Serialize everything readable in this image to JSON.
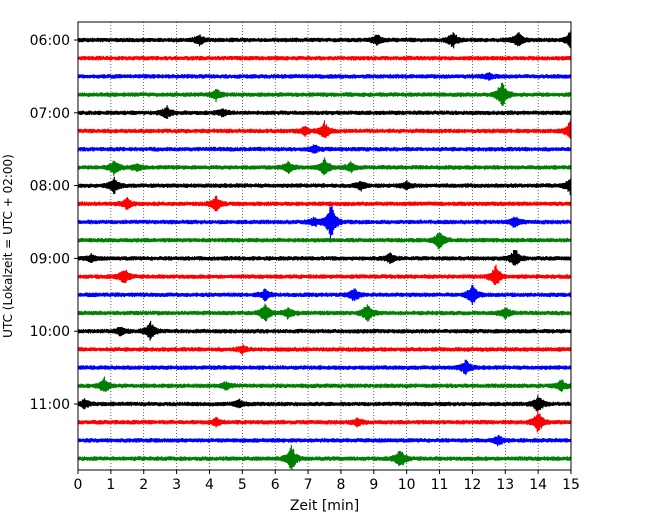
{
  "chart_data": {
    "type": "line",
    "title": "",
    "xlabel": "Zeit  [min]",
    "ylabel": "UTC (Lokalzeit = UTC + 02:00)",
    "xlim": [
      0,
      15
    ],
    "x_ticks": [
      "0",
      "1",
      "2",
      "3",
      "4",
      "5",
      "6",
      "7",
      "8",
      "9",
      "10",
      "11",
      "12",
      "13",
      "14",
      "15"
    ],
    "y_ticks": [
      "06:00",
      "07:00",
      "08:00",
      "09:00",
      "10:00",
      "11:00"
    ],
    "grid": "vertical dotted",
    "trace_interval_min": 15,
    "start_time": "06:00",
    "colors": [
      "#000000",
      "#ff0000",
      "#0000ff",
      "#008000"
    ],
    "series": [
      {
        "start": "06:00",
        "values": [
          0.0,
          0.0,
          0.0,
          0.0,
          0.0,
          0.0,
          0.0,
          0.0,
          0.0,
          0.0,
          0.0,
          0.0,
          0.0,
          0.0,
          0.0,
          0.0,
          0.0,
          0.0,
          0.0,
          0.0,
          0.0,
          0.0,
          0.0,
          0.0,
          0.0,
          0.0,
          0.0,
          0.0,
          0.0,
          0.0,
          0.0,
          0.0
        ]
      },
      {
        "start": "06:15",
        "values": [
          0.0,
          0.0,
          0.0,
          0.0,
          0.0,
          0.0,
          0.0,
          0.0,
          0.0,
          0.0,
          0.0,
          0.0,
          0.0,
          0.0,
          0.0,
          0.0,
          0.0,
          0.0,
          0.0,
          0.0,
          0.0,
          0.0,
          0.0,
          0.0,
          0.0,
          0.0,
          0.0,
          0.0,
          0.0,
          0.0,
          0.0,
          0.0
        ]
      },
      {
        "start": "06:30",
        "values": [
          0.0,
          0.0,
          0.0,
          0.0,
          0.0,
          0.0,
          0.0,
          0.0,
          0.0,
          0.0,
          0.0,
          0.0,
          0.0,
          0.0,
          0.0,
          0.0,
          0.0,
          0.0,
          0.0,
          0.0,
          0.0,
          0.0,
          0.0,
          0.0,
          0.0,
          0.0,
          0.0,
          0.0,
          0.0,
          0.0,
          0.0,
          0.0
        ]
      },
      {
        "start": "06:45",
        "values": [
          0.0,
          0.0,
          0.0,
          0.0,
          0.0,
          0.0,
          0.0,
          0.0,
          0.0,
          0.0,
          0.0,
          0.0,
          0.0,
          0.0,
          0.0,
          0.0,
          0.0,
          0.0,
          0.0,
          0.0,
          0.0,
          0.0,
          0.0,
          0.0,
          0.0,
          0.0,
          0.0,
          0.0,
          0.0,
          0.0,
          0.0,
          0.0
        ]
      },
      {
        "start": "07:00",
        "values": [
          0.0,
          0.0,
          0.0,
          0.0,
          0.0,
          0.0,
          0.0,
          0.0,
          0.0,
          0.0,
          0.0,
          0.0,
          0.0,
          0.0,
          0.0,
          0.0,
          0.0,
          0.0,
          0.0,
          0.0,
          0.0,
          0.0,
          0.0,
          0.0,
          0.0,
          0.0,
          0.0,
          0.0,
          0.0,
          0.0,
          0.0,
          0.0
        ]
      },
      {
        "start": "07:15",
        "values": [
          0.0,
          0.0,
          0.0,
          0.0,
          0.0,
          0.0,
          0.0,
          0.0,
          0.0,
          0.0,
          0.0,
          0.0,
          0.0,
          0.0,
          0.0,
          0.0,
          0.0,
          0.0,
          0.0,
          0.0,
          0.0,
          0.0,
          0.0,
          0.0,
          0.0,
          0.0,
          0.0,
          0.0,
          0.0,
          0.0,
          0.0,
          0.0
        ]
      },
      {
        "start": "07:30",
        "values": [
          0.0,
          0.0,
          0.0,
          0.0,
          0.0,
          0.0,
          0.0,
          0.0,
          0.0,
          0.0,
          0.0,
          0.0,
          0.0,
          0.0,
          0.0,
          0.0,
          0.0,
          0.0,
          0.0,
          0.0,
          0.0,
          0.0,
          0.0,
          0.0,
          0.0,
          0.0,
          0.0,
          0.0,
          0.0,
          0.0,
          0.0,
          0.0
        ]
      },
      {
        "start": "07:45",
        "values": [
          0.0,
          0.0,
          0.0,
          0.0,
          0.0,
          0.0,
          0.0,
          0.0,
          0.0,
          0.0,
          0.0,
          0.0,
          0.0,
          0.0,
          0.0,
          0.0,
          0.0,
          0.0,
          0.0,
          0.0,
          0.0,
          0.0,
          0.0,
          0.0,
          0.0,
          0.0,
          0.0,
          0.0,
          0.0,
          0.0,
          0.0,
          0.0
        ]
      },
      {
        "start": "08:00",
        "values": [
          0.0,
          0.0,
          0.0,
          0.0,
          0.0,
          0.0,
          0.0,
          0.0,
          0.0,
          0.0,
          0.0,
          0.0,
          0.0,
          0.0,
          0.0,
          0.0,
          0.0,
          0.0,
          0.0,
          0.0,
          0.0,
          0.0,
          0.0,
          0.0,
          0.0,
          0.0,
          0.0,
          0.0,
          0.0,
          0.0,
          0.0,
          0.0
        ]
      },
      {
        "start": "08:15",
        "values": [
          0.0,
          0.0,
          0.0,
          0.0,
          0.0,
          0.0,
          0.0,
          0.0,
          0.0,
          0.0,
          0.0,
          0.0,
          0.0,
          0.0,
          0.0,
          0.0,
          0.0,
          0.0,
          0.0,
          0.0,
          0.0,
          0.0,
          0.0,
          0.0,
          0.0,
          0.0,
          0.0,
          0.0,
          0.0,
          0.0,
          0.0,
          0.0
        ]
      },
      {
        "start": "08:30",
        "values": [
          0.0,
          0.0,
          0.0,
          0.0,
          0.0,
          0.0,
          0.0,
          0.0,
          0.0,
          0.0,
          0.0,
          0.0,
          0.0,
          0.0,
          0.0,
          0.0,
          0.0,
          0.0,
          0.0,
          0.0,
          0.0,
          0.0,
          0.0,
          0.0,
          0.0,
          0.0,
          0.0,
          0.0,
          0.0,
          0.0,
          0.0,
          0.0
        ]
      },
      {
        "start": "08:45",
        "values": [
          0.0,
          0.0,
          0.0,
          0.0,
          0.0,
          0.0,
          0.0,
          0.0,
          0.0,
          0.0,
          0.0,
          0.0,
          0.0,
          0.0,
          0.0,
          0.0,
          0.0,
          0.0,
          0.0,
          0.0,
          0.0,
          0.0,
          0.0,
          0.0,
          0.0,
          0.0,
          0.0,
          0.0,
          0.0,
          0.0,
          0.0,
          0.0
        ]
      },
      {
        "start": "09:00",
        "values": [
          0.0,
          0.0,
          0.0,
          0.0,
          0.0,
          0.0,
          0.0,
          0.0,
          0.0,
          0.0,
          0.0,
          0.0,
          0.0,
          0.0,
          0.0,
          0.0,
          0.0,
          0.0,
          0.0,
          0.0,
          0.0,
          0.0,
          0.0,
          0.0,
          0.0,
          0.0,
          0.0,
          0.0,
          0.0,
          0.0,
          0.0,
          0.0
        ]
      },
      {
        "start": "09:15",
        "values": [
          0.0,
          0.0,
          0.0,
          0.0,
          0.0,
          0.0,
          0.0,
          0.0,
          0.0,
          0.0,
          0.0,
          0.0,
          0.0,
          0.0,
          0.0,
          0.0,
          0.0,
          0.0,
          0.0,
          0.0,
          0.0,
          0.0,
          0.0,
          0.0,
          0.0,
          0.0,
          0.0,
          0.0,
          0.0,
          0.0,
          0.0,
          0.0
        ]
      },
      {
        "start": "09:30",
        "values": [
          0.0,
          0.0,
          0.0,
          0.0,
          0.0,
          0.0,
          0.0,
          0.0,
          0.0,
          0.0,
          0.0,
          0.0,
          0.0,
          0.0,
          0.0,
          0.0,
          0.0,
          0.0,
          0.0,
          0.0,
          0.0,
          0.0,
          0.0,
          0.0,
          0.0,
          0.0,
          0.0,
          0.0,
          0.0,
          0.0,
          0.0,
          0.0
        ]
      },
      {
        "start": "09:45",
        "values": [
          0.0,
          0.0,
          0.0,
          0.0,
          0.0,
          0.0,
          0.0,
          0.0,
          0.0,
          0.0,
          0.0,
          0.0,
          0.0,
          0.0,
          0.0,
          0.0,
          0.0,
          0.0,
          0.0,
          0.0,
          0.0,
          0.0,
          0.0,
          0.0,
          0.0,
          0.0,
          0.0,
          0.0,
          0.0,
          0.0,
          0.0,
          0.0
        ]
      },
      {
        "start": "10:00",
        "values": [
          0.0,
          0.0,
          0.0,
          0.0,
          0.0,
          0.0,
          0.0,
          0.0,
          0.0,
          0.0,
          0.0,
          0.0,
          0.0,
          0.0,
          0.0,
          0.0,
          0.0,
          0.0,
          0.0,
          0.0,
          0.0,
          0.0,
          0.0,
          0.0,
          0.0,
          0.0,
          0.0,
          0.0,
          0.0,
          0.0,
          0.0,
          0.0
        ]
      },
      {
        "start": "10:15",
        "values": [
          0.0,
          0.0,
          0.0,
          0.0,
          0.0,
          0.0,
          0.0,
          0.0,
          0.0,
          0.0,
          0.0,
          0.0,
          0.0,
          0.0,
          0.0,
          0.0,
          0.0,
          0.0,
          0.0,
          0.0,
          0.0,
          0.0,
          0.0,
          0.0,
          0.0,
          0.0,
          0.0,
          0.0,
          0.0,
          0.0,
          0.0,
          0.0
        ]
      },
      {
        "start": "10:30",
        "values": [
          0.0,
          0.0,
          0.0,
          0.0,
          0.0,
          0.0,
          0.0,
          0.0,
          0.0,
          0.0,
          0.0,
          0.0,
          0.0,
          0.0,
          0.0,
          0.0,
          0.0,
          0.0,
          0.0,
          0.0,
          0.0,
          0.0,
          0.0,
          0.0,
          0.0,
          0.0,
          0.0,
          0.0,
          0.0,
          0.0,
          0.0,
          0.0
        ]
      },
      {
        "start": "10:45",
        "values": [
          0.0,
          0.0,
          0.0,
          0.0,
          0.0,
          0.0,
          0.0,
          0.0,
          0.0,
          0.0,
          0.0,
          0.0,
          0.0,
          0.0,
          0.0,
          0.0,
          0.0,
          0.0,
          0.0,
          0.0,
          0.0,
          0.0,
          0.0,
          0.0,
          0.0,
          0.0,
          0.0,
          0.0,
          0.0,
          0.0,
          0.0,
          0.0
        ]
      },
      {
        "start": "11:00",
        "values": [
          0.0,
          0.0,
          0.0,
          0.0,
          0.0,
          0.0,
          0.0,
          0.0,
          0.0,
          0.0,
          0.0,
          0.0,
          0.0,
          0.0,
          0.0,
          0.0,
          0.0,
          0.0,
          0.0,
          0.0,
          0.0,
          0.0,
          0.0,
          0.0,
          0.0,
          0.0,
          0.0,
          0.0,
          0.0,
          0.0,
          0.0,
          0.0
        ]
      },
      {
        "start": "11:15",
        "values": [
          0.0,
          0.0,
          0.0,
          0.0,
          0.0,
          0.0,
          0.0,
          0.0,
          0.0,
          0.0,
          0.0,
          0.0,
          0.0,
          0.0,
          0.0,
          0.0,
          0.0,
          0.0,
          0.0,
          0.0,
          0.0,
          0.0,
          0.0,
          0.0,
          0.0,
          0.0,
          0.0,
          0.0,
          0.0,
          0.0,
          0.0,
          0.0
        ]
      },
      {
        "start": "11:30",
        "values": [
          0.0,
          0.0,
          0.0,
          0.0,
          0.0,
          0.0,
          0.0,
          0.0,
          0.0,
          0.0,
          0.0,
          0.0,
          0.0,
          0.0,
          0.0,
          0.0,
          0.0,
          0.0,
          0.0,
          0.0,
          0.0,
          0.0,
          0.0,
          0.0,
          0.0,
          0.0,
          0.0,
          0.0,
          0.0,
          0.0,
          0.0,
          0.0
        ]
      },
      {
        "start": "11:45",
        "values": [
          0.0,
          0.0,
          0.0,
          0.0,
          0.0,
          0.0,
          0.0,
          0.0,
          0.0,
          0.0,
          0.0,
          0.0,
          0.0,
          0.0,
          0.0,
          0.0,
          0.0,
          0.0,
          0.0,
          0.0,
          0.0,
          0.0,
          0.0,
          0.0,
          0.0,
          0.0,
          0.0,
          0.0,
          0.0,
          0.0,
          0.0,
          0.0
        ]
      }
    ],
    "events": [
      {
        "trace": 0,
        "t": 3.7,
        "amp": 0.5
      },
      {
        "trace": 0,
        "t": 9.1,
        "amp": 0.5
      },
      {
        "trace": 0,
        "t": 11.4,
        "amp": 0.9
      },
      {
        "trace": 0,
        "t": 13.4,
        "amp": 0.8
      },
      {
        "trace": 0,
        "t": 15.0,
        "amp": 1.0
      },
      {
        "trace": 2,
        "t": 12.5,
        "amp": 0.3
      },
      {
        "trace": 3,
        "t": 4.2,
        "amp": 0.6
      },
      {
        "trace": 3,
        "t": 12.9,
        "amp": 1.5
      },
      {
        "trace": 4,
        "t": 2.7,
        "amp": 0.7
      },
      {
        "trace": 4,
        "t": 4.4,
        "amp": 0.4
      },
      {
        "trace": 5,
        "t": 6.9,
        "amp": 0.5
      },
      {
        "trace": 5,
        "t": 7.5,
        "amp": 0.9
      },
      {
        "trace": 5,
        "t": 15.0,
        "amp": 1.2
      },
      {
        "trace": 6,
        "t": 7.2,
        "amp": 0.4
      },
      {
        "trace": 7,
        "t": 1.1,
        "amp": 0.8
      },
      {
        "trace": 7,
        "t": 1.8,
        "amp": 0.4
      },
      {
        "trace": 7,
        "t": 6.4,
        "amp": 0.6
      },
      {
        "trace": 7,
        "t": 7.5,
        "amp": 0.9
      },
      {
        "trace": 7,
        "t": 8.3,
        "amp": 0.5
      },
      {
        "trace": 8,
        "t": 1.1,
        "amp": 0.8
      },
      {
        "trace": 8,
        "t": 8.6,
        "amp": 0.5
      },
      {
        "trace": 8,
        "t": 10.0,
        "amp": 0.4
      },
      {
        "trace": 8,
        "t": 15.0,
        "amp": 1.0
      },
      {
        "trace": 9,
        "t": 1.5,
        "amp": 0.6
      },
      {
        "trace": 9,
        "t": 4.2,
        "amp": 0.8
      },
      {
        "trace": 10,
        "t": 7.2,
        "amp": 0.5
      },
      {
        "trace": 10,
        "t": 7.7,
        "amp": 2.0
      },
      {
        "trace": 10,
        "t": 13.3,
        "amp": 0.6
      },
      {
        "trace": 11,
        "t": 11.0,
        "amp": 1.1
      },
      {
        "trace": 12,
        "t": 0.4,
        "amp": 0.4
      },
      {
        "trace": 12,
        "t": 9.5,
        "amp": 0.5
      },
      {
        "trace": 12,
        "t": 13.3,
        "amp": 1.0
      },
      {
        "trace": 13,
        "t": 1.4,
        "amp": 0.9
      },
      {
        "trace": 13,
        "t": 12.7,
        "amp": 1.2
      },
      {
        "trace": 14,
        "t": 5.7,
        "amp": 0.6
      },
      {
        "trace": 14,
        "t": 8.4,
        "amp": 0.7
      },
      {
        "trace": 14,
        "t": 12.0,
        "amp": 1.1
      },
      {
        "trace": 15,
        "t": 5.7,
        "amp": 1.0
      },
      {
        "trace": 15,
        "t": 6.4,
        "amp": 0.6
      },
      {
        "trace": 15,
        "t": 8.8,
        "amp": 1.0
      },
      {
        "trace": 15,
        "t": 13.0,
        "amp": 0.6
      },
      {
        "trace": 16,
        "t": 1.3,
        "amp": 0.5
      },
      {
        "trace": 16,
        "t": 2.2,
        "amp": 1.0
      },
      {
        "trace": 17,
        "t": 5.0,
        "amp": 0.4
      },
      {
        "trace": 18,
        "t": 11.8,
        "amp": 0.8
      },
      {
        "trace": 19,
        "t": 0.8,
        "amp": 0.8
      },
      {
        "trace": 19,
        "t": 4.5,
        "amp": 0.4
      },
      {
        "trace": 19,
        "t": 14.7,
        "amp": 0.6
      },
      {
        "trace": 20,
        "t": 0.2,
        "amp": 0.5
      },
      {
        "trace": 20,
        "t": 4.9,
        "amp": 0.4
      },
      {
        "trace": 20,
        "t": 14.0,
        "amp": 0.9
      },
      {
        "trace": 21,
        "t": 4.2,
        "amp": 0.4
      },
      {
        "trace": 21,
        "t": 8.5,
        "amp": 0.4
      },
      {
        "trace": 21,
        "t": 14.0,
        "amp": 1.2
      },
      {
        "trace": 22,
        "t": 12.8,
        "amp": 0.5
      },
      {
        "trace": 23,
        "t": 6.5,
        "amp": 1.4
      },
      {
        "trace": 23,
        "t": 9.8,
        "amp": 1.1
      }
    ]
  }
}
